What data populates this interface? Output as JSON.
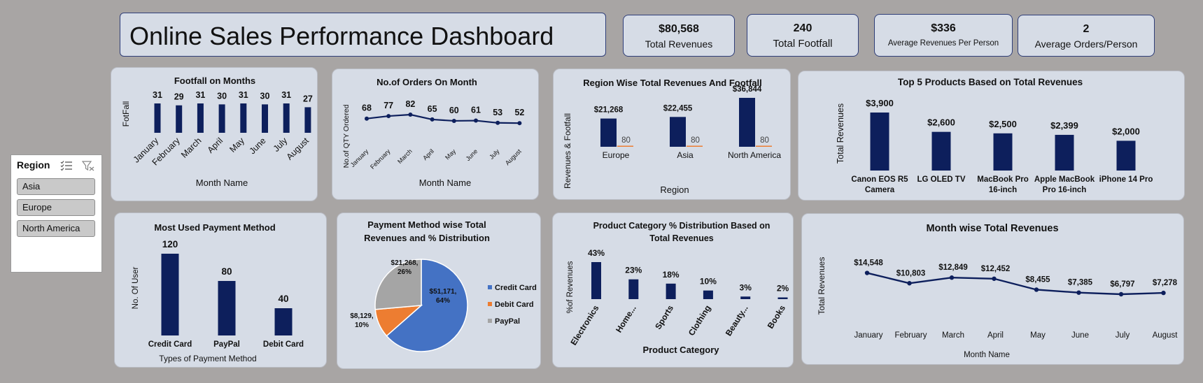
{
  "header": {
    "title": "Online Sales Performance Dashboard"
  },
  "kpis": [
    {
      "value": "$80,568",
      "label": "Total Revenues"
    },
    {
      "value": "240",
      "label": "Total Footfall"
    },
    {
      "value": "$336",
      "label": "Average Revenues Per Person"
    },
    {
      "value": "2",
      "label": "Average Orders/Person"
    }
  ],
  "slicer": {
    "title": "Region",
    "items": [
      "Asia",
      "Europe",
      "North America"
    ]
  },
  "colors": {
    "navy": "#0d1f5c",
    "orange": "#ed7d31",
    "blue": "#4472c4",
    "gray": "#a5a5a5"
  },
  "chart_data": [
    {
      "id": "footfall",
      "type": "bar",
      "title": "Footfall on Months",
      "xlabel": "Month Name",
      "ylabel": "FotFall",
      "categories": [
        "January",
        "February",
        "March",
        "April",
        "May",
        "June",
        "July",
        "August"
      ],
      "values": [
        31,
        29,
        31,
        30,
        31,
        30,
        31,
        27
      ],
      "labels": [
        "31",
        "29",
        "31",
        "30",
        "31",
        "30",
        "31",
        "27"
      ]
    },
    {
      "id": "orders",
      "type": "line",
      "title": "No.of Orders On Month",
      "xlabel": "Month Name",
      "ylabel": "No.of QTY Ordered",
      "categories": [
        "January",
        "February",
        "March",
        "April",
        "May",
        "June",
        "July",
        "August"
      ],
      "values": [
        68,
        77,
        82,
        65,
        60,
        61,
        53,
        52
      ],
      "labels": [
        "68",
        "77",
        "82",
        "65",
        "60",
        "61",
        "53",
        "52"
      ]
    },
    {
      "id": "region",
      "type": "bar",
      "title": "Region Wise Total Revenues And Footfall",
      "xlabel": "Region",
      "ylabel": "Revenues & Footfall",
      "categories": [
        "Europe",
        "Asia",
        "North America"
      ],
      "series": [
        {
          "values": [
            21268,
            22455,
            36844
          ],
          "labels": [
            "$21,268",
            "$22,455",
            "$36,844"
          ]
        },
        {
          "values": [
            80,
            80,
            80
          ],
          "labels": [
            "80",
            "80",
            "80"
          ]
        }
      ]
    },
    {
      "id": "top5",
      "type": "bar",
      "title": "Top 5 Products Based on Total Revenues",
      "xlabel": "",
      "ylabel": "Total Revenues",
      "categories": [
        [
          "Canon EOS R5",
          "Camera"
        ],
        [
          "LG OLED TV"
        ],
        [
          "MacBook Pro",
          "16-inch"
        ],
        [
          "Apple MacBook",
          "Pro 16-inch"
        ],
        [
          "iPhone 14 Pro"
        ]
      ],
      "values": [
        3900,
        2600,
        2500,
        2399,
        2000
      ],
      "labels": [
        "$3,900",
        "$2,600",
        "$2,500",
        "$2,399",
        "$2,000"
      ]
    },
    {
      "id": "payment",
      "type": "bar",
      "title": "Most Used Payment Method",
      "xlabel": "Types of Payment Method",
      "ylabel": "No. Of User",
      "categories": [
        "Credit Card",
        "PayPal",
        "Debit Card"
      ],
      "values": [
        120,
        80,
        40
      ],
      "labels": [
        "120",
        "80",
        "40"
      ]
    },
    {
      "id": "pie",
      "type": "pie",
      "title": [
        "Payment Method wise Total",
        "Revenues and % Distribution"
      ],
      "legend": [
        "Credit Card",
        "Debit Card",
        "PayPal"
      ],
      "values": [
        51171,
        8129,
        21268
      ],
      "labels": [
        [
          "$51,171,",
          "64%"
        ],
        [
          "$8,129,",
          "10%"
        ],
        [
          "$21,268,",
          "26%"
        ]
      ]
    },
    {
      "id": "category",
      "type": "bar",
      "title": [
        "Product Category % Distribution Based on",
        "Total Revenues"
      ],
      "xlabel": "Product Category",
      "ylabel": "%of Revenues",
      "categories": [
        "Electronics",
        "Home...",
        "Sports",
        "Clothing",
        "Beauty...",
        "Books"
      ],
      "values": [
        43,
        23,
        18,
        10,
        3,
        2
      ],
      "labels": [
        "43%",
        "23%",
        "18%",
        "10%",
        "3%",
        "2%"
      ]
    },
    {
      "id": "monthrev",
      "type": "line",
      "title": "Month wise Total Revenues",
      "xlabel": "Month Name",
      "ylabel": "Total Revenues",
      "categories": [
        "January",
        "February",
        "March",
        "April",
        "May",
        "June",
        "July",
        "August"
      ],
      "values": [
        14548,
        10803,
        12849,
        12452,
        8455,
        7385,
        6797,
        7278
      ],
      "labels": [
        "$14,548",
        "$10,803",
        "$12,849",
        "$12,452",
        "$8,455",
        "$7,385",
        "$6,797",
        "$7,278"
      ]
    }
  ]
}
